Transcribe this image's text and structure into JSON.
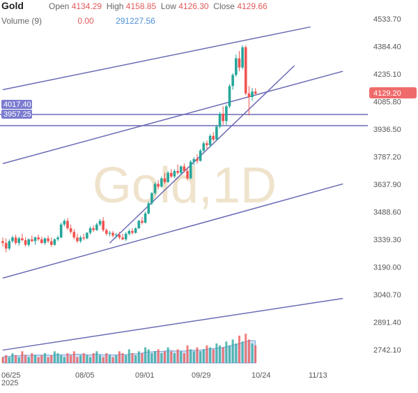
{
  "header": {
    "symbol": "Gold",
    "open_label": "Open",
    "open_value": "4134.29",
    "high_label": "High",
    "high_value": "4158.85",
    "low_label": "Low",
    "low_value": "4126.30",
    "close_label": "Close",
    "close_value": "4129.66",
    "volume_label": "Volume (9)",
    "volume_value": "0.00",
    "volume_ma_value": "291227.56"
  },
  "watermark": "Gold,1D",
  "colors": {
    "up": "#26a69a",
    "down": "#ef5350",
    "trendline": "#6a6ab5",
    "volume_area": "#a9c4ea",
    "price_tag": "#ef6b6b",
    "level_tag": "#7b7bd0"
  },
  "chart_data": {
    "type": "candlestick",
    "y_ticks": [
      "4533.70",
      "4384.40",
      "4235.10",
      "4085.80",
      "3936.50",
      "3787.20",
      "3637.90",
      "3488.60",
      "3339.30",
      "3190.00",
      "3040.70",
      "2891.40",
      "2742.10"
    ],
    "x_ticks": [
      "06/25",
      "2025",
      "08/05",
      "09/01",
      "09/29",
      "10/24",
      "11/13"
    ],
    "last_price": "4129.20",
    "horizontal_levels": [
      "4017.40",
      "3957.25"
    ],
    "candles": [
      {
        "t": 0,
        "o": 3330,
        "h": 3350,
        "l": 3300,
        "c": 3320
      },
      {
        "t": 1,
        "o": 3320,
        "h": 3345,
        "l": 3270,
        "c": 3290
      },
      {
        "t": 2,
        "o": 3290,
        "h": 3340,
        "l": 3280,
        "c": 3330
      },
      {
        "t": 3,
        "o": 3330,
        "h": 3360,
        "l": 3320,
        "c": 3350
      },
      {
        "t": 4,
        "o": 3350,
        "h": 3365,
        "l": 3310,
        "c": 3320
      },
      {
        "t": 5,
        "o": 3320,
        "h": 3355,
        "l": 3305,
        "c": 3345
      },
      {
        "t": 6,
        "o": 3345,
        "h": 3370,
        "l": 3330,
        "c": 3335
      },
      {
        "t": 7,
        "o": 3335,
        "h": 3350,
        "l": 3300,
        "c": 3310
      },
      {
        "t": 8,
        "o": 3310,
        "h": 3345,
        "l": 3300,
        "c": 3340
      },
      {
        "t": 9,
        "o": 3340,
        "h": 3360,
        "l": 3325,
        "c": 3330
      },
      {
        "t": 10,
        "o": 3330,
        "h": 3355,
        "l": 3310,
        "c": 3350
      },
      {
        "t": 11,
        "o": 3350,
        "h": 3365,
        "l": 3330,
        "c": 3340
      },
      {
        "t": 12,
        "o": 3340,
        "h": 3355,
        "l": 3315,
        "c": 3320
      },
      {
        "t": 13,
        "o": 3320,
        "h": 3350,
        "l": 3310,
        "c": 3345
      },
      {
        "t": 14,
        "o": 3345,
        "h": 3360,
        "l": 3320,
        "c": 3330
      },
      {
        "t": 15,
        "o": 3330,
        "h": 3350,
        "l": 3300,
        "c": 3310
      },
      {
        "t": 16,
        "o": 3310,
        "h": 3345,
        "l": 3305,
        "c": 3340
      },
      {
        "t": 17,
        "o": 3340,
        "h": 3360,
        "l": 3330,
        "c": 3350
      },
      {
        "t": 18,
        "o": 3350,
        "h": 3430,
        "l": 3345,
        "c": 3420
      },
      {
        "t": 19,
        "o": 3420,
        "h": 3450,
        "l": 3410,
        "c": 3440
      },
      {
        "t": 20,
        "o": 3440,
        "h": 3455,
        "l": 3390,
        "c": 3400
      },
      {
        "t": 21,
        "o": 3400,
        "h": 3420,
        "l": 3370,
        "c": 3380
      },
      {
        "t": 22,
        "o": 3380,
        "h": 3395,
        "l": 3340,
        "c": 3350
      },
      {
        "t": 23,
        "o": 3350,
        "h": 3370,
        "l": 3320,
        "c": 3330
      },
      {
        "t": 24,
        "o": 3330,
        "h": 3360,
        "l": 3320,
        "c": 3350
      },
      {
        "t": 25,
        "o": 3350,
        "h": 3370,
        "l": 3335,
        "c": 3345
      },
      {
        "t": 26,
        "o": 3345,
        "h": 3380,
        "l": 3340,
        "c": 3375
      },
      {
        "t": 27,
        "o": 3375,
        "h": 3410,
        "l": 3365,
        "c": 3400
      },
      {
        "t": 28,
        "o": 3400,
        "h": 3415,
        "l": 3380,
        "c": 3390
      },
      {
        "t": 29,
        "o": 3390,
        "h": 3430,
        "l": 3385,
        "c": 3420
      },
      {
        "t": 30,
        "o": 3420,
        "h": 3450,
        "l": 3410,
        "c": 3440
      },
      {
        "t": 31,
        "o": 3440,
        "h": 3460,
        "l": 3380,
        "c": 3390
      },
      {
        "t": 32,
        "o": 3390,
        "h": 3400,
        "l": 3360,
        "c": 3370
      },
      {
        "t": 33,
        "o": 3370,
        "h": 3385,
        "l": 3355,
        "c": 3375
      },
      {
        "t": 34,
        "o": 3375,
        "h": 3385,
        "l": 3350,
        "c": 3360
      },
      {
        "t": 35,
        "o": 3360,
        "h": 3375,
        "l": 3345,
        "c": 3365
      },
      {
        "t": 36,
        "o": 3365,
        "h": 3380,
        "l": 3340,
        "c": 3350
      },
      {
        "t": 37,
        "o": 3350,
        "h": 3370,
        "l": 3335,
        "c": 3340
      },
      {
        "t": 38,
        "o": 3340,
        "h": 3380,
        "l": 3330,
        "c": 3370
      },
      {
        "t": 39,
        "o": 3370,
        "h": 3395,
        "l": 3360,
        "c": 3385
      },
      {
        "t": 40,
        "o": 3385,
        "h": 3400,
        "l": 3365,
        "c": 3375
      },
      {
        "t": 41,
        "o": 3375,
        "h": 3405,
        "l": 3370,
        "c": 3400
      },
      {
        "t": 42,
        "o": 3400,
        "h": 3445,
        "l": 3395,
        "c": 3440
      },
      {
        "t": 43,
        "o": 3440,
        "h": 3460,
        "l": 3420,
        "c": 3430
      },
      {
        "t": 44,
        "o": 3430,
        "h": 3490,
        "l": 3425,
        "c": 3480
      },
      {
        "t": 45,
        "o": 3480,
        "h": 3545,
        "l": 3475,
        "c": 3535
      },
      {
        "t": 46,
        "o": 3535,
        "h": 3595,
        "l": 3525,
        "c": 3590
      },
      {
        "t": 47,
        "o": 3590,
        "h": 3650,
        "l": 3580,
        "c": 3640
      },
      {
        "t": 48,
        "o": 3640,
        "h": 3660,
        "l": 3610,
        "c": 3625
      },
      {
        "t": 49,
        "o": 3625,
        "h": 3680,
        "l": 3620,
        "c": 3670
      },
      {
        "t": 50,
        "o": 3670,
        "h": 3700,
        "l": 3640,
        "c": 3650
      },
      {
        "t": 51,
        "o": 3650,
        "h": 3710,
        "l": 3645,
        "c": 3700
      },
      {
        "t": 52,
        "o": 3700,
        "h": 3720,
        "l": 3670,
        "c": 3680
      },
      {
        "t": 53,
        "o": 3680,
        "h": 3720,
        "l": 3670,
        "c": 3710
      },
      {
        "t": 54,
        "o": 3710,
        "h": 3745,
        "l": 3690,
        "c": 3700
      },
      {
        "t": 55,
        "o": 3700,
        "h": 3740,
        "l": 3690,
        "c": 3735
      },
      {
        "t": 56,
        "o": 3735,
        "h": 3750,
        "l": 3700,
        "c": 3710
      },
      {
        "t": 57,
        "o": 3710,
        "h": 3730,
        "l": 3660,
        "c": 3670
      },
      {
        "t": 58,
        "o": 3670,
        "h": 3770,
        "l": 3665,
        "c": 3760
      },
      {
        "t": 59,
        "o": 3760,
        "h": 3785,
        "l": 3740,
        "c": 3775
      },
      {
        "t": 60,
        "o": 3775,
        "h": 3800,
        "l": 3750,
        "c": 3765
      },
      {
        "t": 61,
        "o": 3765,
        "h": 3830,
        "l": 3760,
        "c": 3820
      },
      {
        "t": 62,
        "o": 3820,
        "h": 3870,
        "l": 3810,
        "c": 3860
      },
      {
        "t": 63,
        "o": 3860,
        "h": 3875,
        "l": 3830,
        "c": 3850
      },
      {
        "t": 64,
        "o": 3850,
        "h": 3910,
        "l": 3840,
        "c": 3900
      },
      {
        "t": 65,
        "o": 3900,
        "h": 3920,
        "l": 3870,
        "c": 3880
      },
      {
        "t": 66,
        "o": 3880,
        "h": 3960,
        "l": 3875,
        "c": 3950
      },
      {
        "t": 67,
        "o": 3950,
        "h": 4030,
        "l": 3940,
        "c": 4020
      },
      {
        "t": 68,
        "o": 4020,
        "h": 4060,
        "l": 3960,
        "c": 3980
      },
      {
        "t": 69,
        "o": 3980,
        "h": 4070,
        "l": 3960,
        "c": 4060
      },
      {
        "t": 70,
        "o": 4060,
        "h": 4180,
        "l": 4050,
        "c": 4170
      },
      {
        "t": 71,
        "o": 4170,
        "h": 4240,
        "l": 4150,
        "c": 4230
      },
      {
        "t": 72,
        "o": 4230,
        "h": 4340,
        "l": 4220,
        "c": 4320
      },
      {
        "t": 73,
        "o": 4320,
        "h": 4360,
        "l": 4250,
        "c": 4270
      },
      {
        "t": 74,
        "o": 4270,
        "h": 4390,
        "l": 4260,
        "c": 4380
      },
      {
        "t": 75,
        "o": 4380,
        "h": 4390,
        "l": 4120,
        "c": 4130
      },
      {
        "t": 76,
        "o": 4130,
        "h": 4170,
        "l": 4010,
        "c": 4110
      },
      {
        "t": 77,
        "o": 4110,
        "h": 4160,
        "l": 4090,
        "c": 4140
      },
      {
        "t": 78,
        "o": 4140,
        "h": 4158,
        "l": 4120,
        "c": 4129
      }
    ],
    "trendlines": [
      {
        "t1": 0,
        "p1": 4150,
        "t2": 95,
        "p2": 4490
      },
      {
        "t1": 0,
        "p1": 3750,
        "t2": 105,
        "p2": 4250
      },
      {
        "t1": 33,
        "p1": 3320,
        "t2": 90,
        "p2": 4280
      },
      {
        "t1": 0,
        "p1": 3130,
        "t2": 105,
        "p2": 3640
      },
      {
        "t1": 0,
        "p1": 2740,
        "t2": 105,
        "p2": 3020
      }
    ],
    "volume": [
      3,
      4,
      3,
      5,
      4,
      3,
      6,
      4,
      3,
      5,
      4,
      3,
      4,
      5,
      3,
      4,
      6,
      5,
      4,
      3,
      5,
      4,
      6,
      3,
      4,
      5,
      4,
      3,
      5,
      6,
      4,
      3,
      5,
      4,
      3,
      4,
      6,
      5,
      4,
      7,
      5,
      4,
      6,
      5,
      8,
      7,
      5,
      6,
      7,
      5,
      6,
      8,
      6,
      5,
      7,
      6,
      5,
      9,
      7,
      6,
      8,
      6,
      7,
      9,
      8,
      7,
      10,
      9,
      8,
      11,
      9,
      12,
      10,
      14,
      11,
      15,
      12,
      10,
      9
    ]
  }
}
